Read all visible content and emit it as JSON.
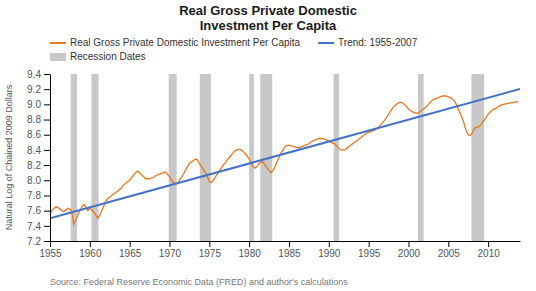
{
  "chart_data": {
    "type": "line",
    "title": "Real Gross Private Domestic\nInvestment Per Capita",
    "ylabel": "Natural Log of Chained 2009 Dollars",
    "source": "Source: Federal Reserve Economic Data (FRED) and author's calculations",
    "xlim": [
      1955,
      2014
    ],
    "ylim": [
      7.2,
      9.4
    ],
    "xticks": [
      1955,
      1960,
      1965,
      1970,
      1975,
      1980,
      1985,
      1990,
      1995,
      2000,
      2005,
      2010
    ],
    "yticks": [
      7.2,
      7.4,
      7.6,
      7.8,
      {
        "value": 8.0,
        "label": "8.0"
      },
      8.2,
      8.4,
      8.6,
      8.8,
      {
        "value": 9.0,
        "label": "9.0"
      },
      9.2,
      9.4
    ],
    "grid": false,
    "legend": "top",
    "series": [
      {
        "name": "Real Gross Private Domestic Investment Per Capita",
        "type": "line",
        "color": "#E87722",
        "x": [
          1955.0,
          1955.25,
          1955.5,
          1955.75,
          1956.0,
          1956.25,
          1956.5,
          1956.75,
          1957.0,
          1957.25,
          1957.5,
          1957.75,
          1958.0,
          1958.25,
          1958.5,
          1958.75,
          1959.0,
          1959.25,
          1959.5,
          1959.75,
          1960.0,
          1960.25,
          1960.5,
          1960.75,
          1961.0,
          1961.25,
          1961.5,
          1961.75,
          1962.0,
          1962.25,
          1962.5,
          1962.75,
          1963.0,
          1963.25,
          1963.5,
          1963.75,
          1964.0,
          1964.25,
          1964.5,
          1964.75,
          1965.0,
          1965.25,
          1965.5,
          1965.75,
          1966.0,
          1966.25,
          1966.5,
          1966.75,
          1967.0,
          1967.25,
          1967.5,
          1967.75,
          1968.0,
          1968.25,
          1968.5,
          1968.75,
          1969.0,
          1969.25,
          1969.5,
          1969.75,
          1970.0,
          1970.25,
          1970.5,
          1970.75,
          1971.0,
          1971.25,
          1971.5,
          1971.75,
          1972.0,
          1972.25,
          1972.5,
          1972.75,
          1973.0,
          1973.25,
          1973.5,
          1973.75,
          1974.0,
          1974.25,
          1974.5,
          1974.75,
          1975.0,
          1975.25,
          1975.5,
          1975.75,
          1976.0,
          1976.25,
          1976.5,
          1976.75,
          1977.0,
          1977.25,
          1977.5,
          1977.75,
          1978.0,
          1978.25,
          1978.5,
          1978.75,
          1979.0,
          1979.25,
          1979.5,
          1979.75,
          1980.0,
          1980.25,
          1980.5,
          1980.75,
          1981.0,
          1981.25,
          1981.5,
          1981.75,
          1982.0,
          1982.25,
          1982.5,
          1982.75,
          1983.0,
          1983.25,
          1983.5,
          1983.75,
          1984.0,
          1984.25,
          1984.5,
          1984.75,
          1985.0,
          1985.25,
          1985.5,
          1985.75,
          1986.0,
          1986.25,
          1986.5,
          1986.75,
          1987.0,
          1987.25,
          1987.5,
          1987.75,
          1988.0,
          1988.25,
          1988.5,
          1988.75,
          1989.0,
          1989.25,
          1989.5,
          1989.75,
          1990.0,
          1990.25,
          1990.5,
          1990.75,
          1991.0,
          1991.25,
          1991.5,
          1991.75,
          1992.0,
          1992.25,
          1992.5,
          1992.75,
          1993.0,
          1993.25,
          1993.5,
          1993.75,
          1994.0,
          1994.25,
          1994.5,
          1994.75,
          1995.0,
          1995.25,
          1995.5,
          1995.75,
          1996.0,
          1996.25,
          1996.5,
          1996.75,
          1997.0,
          1997.25,
          1997.5,
          1997.75,
          1998.0,
          1998.25,
          1998.5,
          1998.75,
          1999.0,
          1999.25,
          1999.5,
          1999.75,
          2000.0,
          2000.25,
          2000.5,
          2000.75,
          2001.0,
          2001.25,
          2001.5,
          2001.75,
          2002.0,
          2002.25,
          2002.5,
          2002.75,
          2003.0,
          2003.25,
          2003.5,
          2003.75,
          2004.0,
          2004.25,
          2004.5,
          2004.75,
          2005.0,
          2005.25,
          2005.5,
          2005.75,
          2006.0,
          2006.25,
          2006.5,
          2006.75,
          2007.0,
          2007.25,
          2007.5,
          2007.75,
          2008.0,
          2008.25,
          2008.5,
          2008.75,
          2009.0,
          2009.25,
          2009.5,
          2009.75,
          2010.0,
          2010.25,
          2010.5,
          2010.75,
          2011.0,
          2011.25,
          2011.5,
          2011.75,
          2012.0,
          2012.25,
          2012.5,
          2012.75,
          2013.0,
          2013.25,
          2013.5,
          2013.75
        ],
        "values": [
          7.56,
          7.6,
          7.63,
          7.65,
          7.64,
          7.62,
          7.6,
          7.59,
          7.61,
          7.63,
          7.62,
          7.58,
          7.42,
          7.48,
          7.55,
          7.6,
          7.65,
          7.68,
          7.65,
          7.6,
          7.63,
          7.61,
          7.58,
          7.54,
          7.5,
          7.54,
          7.6,
          7.66,
          7.72,
          7.76,
          7.78,
          7.8,
          7.82,
          7.84,
          7.86,
          7.88,
          7.9,
          7.94,
          7.96,
          7.98,
          8.0,
          8.04,
          8.07,
          8.1,
          8.12,
          8.1,
          8.07,
          8.05,
          8.02,
          8.02,
          8.02,
          8.03,
          8.04,
          8.06,
          8.07,
          8.08,
          8.09,
          8.1,
          8.11,
          8.08,
          8.05,
          8.0,
          7.97,
          7.95,
          7.96,
          8.0,
          8.04,
          8.08,
          8.13,
          8.18,
          8.22,
          8.24,
          8.26,
          8.28,
          8.27,
          8.22,
          8.18,
          8.14,
          8.1,
          8.05,
          7.98,
          7.97,
          8.0,
          8.04,
          8.08,
          8.12,
          8.16,
          8.2,
          8.23,
          8.27,
          8.3,
          8.33,
          8.36,
          8.39,
          8.4,
          8.41,
          8.4,
          8.38,
          8.35,
          8.32,
          8.28,
          8.22,
          8.18,
          8.16,
          8.18,
          8.22,
          8.24,
          8.24,
          8.2,
          8.16,
          8.13,
          8.1,
          8.13,
          8.18,
          8.24,
          8.3,
          8.36,
          8.4,
          8.44,
          8.46,
          8.46,
          8.45,
          8.45,
          8.44,
          8.43,
          8.43,
          8.44,
          8.45,
          8.46,
          8.47,
          8.48,
          8.5,
          8.52,
          8.53,
          8.54,
          8.55,
          8.55,
          8.55,
          8.54,
          8.53,
          8.52,
          8.5,
          8.49,
          8.48,
          8.45,
          8.42,
          8.4,
          8.4,
          8.4,
          8.42,
          8.44,
          8.46,
          8.48,
          8.5,
          8.52,
          8.54,
          8.56,
          8.58,
          8.6,
          8.62,
          8.63,
          8.64,
          8.65,
          8.66,
          8.68,
          8.7,
          8.73,
          8.76,
          8.79,
          8.83,
          8.87,
          8.91,
          8.95,
          8.98,
          9.0,
          9.02,
          9.03,
          9.02,
          9.0,
          8.97,
          8.94,
          8.92,
          8.9,
          8.89,
          8.88,
          8.89,
          8.91,
          8.93,
          8.95,
          8.97,
          9.0,
          9.03,
          9.05,
          9.07,
          9.08,
          9.09,
          9.1,
          9.11,
          9.11,
          9.11,
          9.1,
          9.09,
          9.07,
          9.05,
          9.0,
          8.94,
          8.88,
          8.82,
          8.74,
          8.65,
          8.6,
          8.59,
          8.62,
          8.68,
          8.7,
          8.7,
          8.72,
          8.75,
          8.79,
          8.83,
          8.87,
          8.9,
          8.92,
          8.94,
          8.95,
          8.97,
          8.98,
          9.0,
          9.0,
          9.01,
          9.01,
          9.02,
          9.02,
          9.03,
          9.03,
          9.04
        ]
      },
      {
        "name": "Trend: 1955-2007",
        "type": "line",
        "color": "#4472C4",
        "x": [
          1955,
          2014
        ],
        "values": [
          7.5,
          9.20215
        ]
      },
      {
        "name": "Recession Dates",
        "type": "band",
        "color": "#C8C8C8",
        "x": [
          [
            1957.6,
            1958.4
          ],
          [
            1960.2,
            1961.1
          ],
          [
            1969.9,
            1970.9
          ],
          [
            1973.8,
            1975.2
          ],
          [
            1980.0,
            1980.6
          ],
          [
            1981.4,
            1982.9
          ],
          [
            1990.6,
            1991.3
          ],
          [
            2001.2,
            2001.9
          ],
          [
            2007.9,
            2009.5
          ]
        ]
      }
    ]
  }
}
